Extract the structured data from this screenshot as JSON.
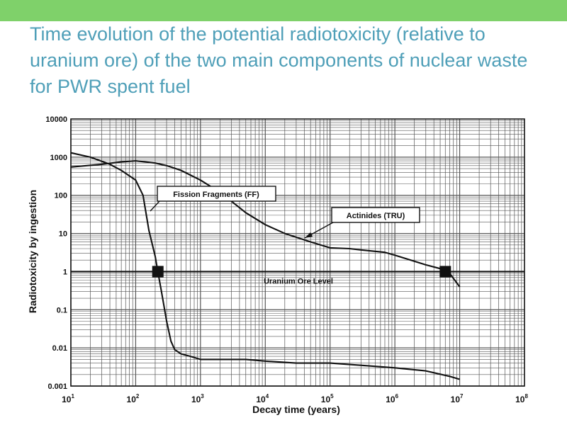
{
  "slide": {
    "title": "Time  evolution of the  potential radiotoxicity (relative to uranium ore)  of the  two  main components of nuclear waste  for PWR spent  fuel"
  },
  "colors": {
    "accent_bar": "#7fd16a",
    "title": "#4f9fb8",
    "ink": "#111111"
  },
  "chart_data": {
    "type": "line",
    "title": "",
    "xlabel": "Decay time (years)",
    "ylabel": "Radiotoxicity by ingestion",
    "x_scale": "log",
    "y_scale": "log",
    "xlim": [
      10,
      100000000
    ],
    "ylim": [
      0.001,
      10000
    ],
    "grid": true,
    "y_ticks": [
      "0.001",
      "0.01",
      "0.1",
      "1",
      "10",
      "100",
      "1000",
      "10000"
    ],
    "x_ticks": [
      {
        "base": "10",
        "exp": "1"
      },
      {
        "base": "10",
        "exp": "2"
      },
      {
        "base": "10",
        "exp": "3"
      },
      {
        "base": "10",
        "exp": "4"
      },
      {
        "base": "10",
        "exp": "5"
      },
      {
        "base": "10",
        "exp": "6"
      },
      {
        "base": "10",
        "exp": "7"
      },
      {
        "base": "10",
        "exp": "8"
      }
    ],
    "reference_line": {
      "label": "Uranium Ore Level",
      "y": 1
    },
    "series": [
      {
        "name": "Fission Fragments (FF)",
        "x": [
          10,
          20,
          40,
          60,
          100,
          130,
          160,
          200,
          220,
          250,
          300,
          350,
          400,
          500,
          700,
          1000,
          2000,
          5000,
          10000,
          30000,
          100000,
          300000,
          1000000,
          3000000,
          7000000,
          10000000
        ],
        "y": [
          1300,
          1000,
          650,
          450,
          250,
          100,
          12,
          2.5,
          1,
          0.3,
          0.05,
          0.015,
          0.009,
          0.007,
          0.006,
          0.005,
          0.005,
          0.005,
          0.0045,
          0.004,
          0.004,
          0.0035,
          0.003,
          0.0025,
          0.0018,
          0.0015
        ]
      },
      {
        "name": "Actinides (TRU)",
        "x": [
          10,
          30,
          60,
          100,
          200,
          300,
          500,
          1000,
          2000,
          3000,
          5000,
          10000,
          20000,
          50000,
          100000,
          200000,
          300000,
          700000,
          1000000,
          3000000,
          5000000,
          6000000,
          7000000,
          10000000
        ],
        "y": [
          550,
          650,
          750,
          800,
          700,
          600,
          450,
          250,
          120,
          70,
          35,
          17,
          10,
          6,
          4.2,
          4.0,
          3.7,
          3.2,
          2.7,
          1.5,
          1.2,
          1.0,
          0.9,
          0.4
        ]
      }
    ],
    "markers": [
      {
        "x": 220,
        "y": 1
      },
      {
        "x": 6000000,
        "y": 1
      }
    ]
  }
}
